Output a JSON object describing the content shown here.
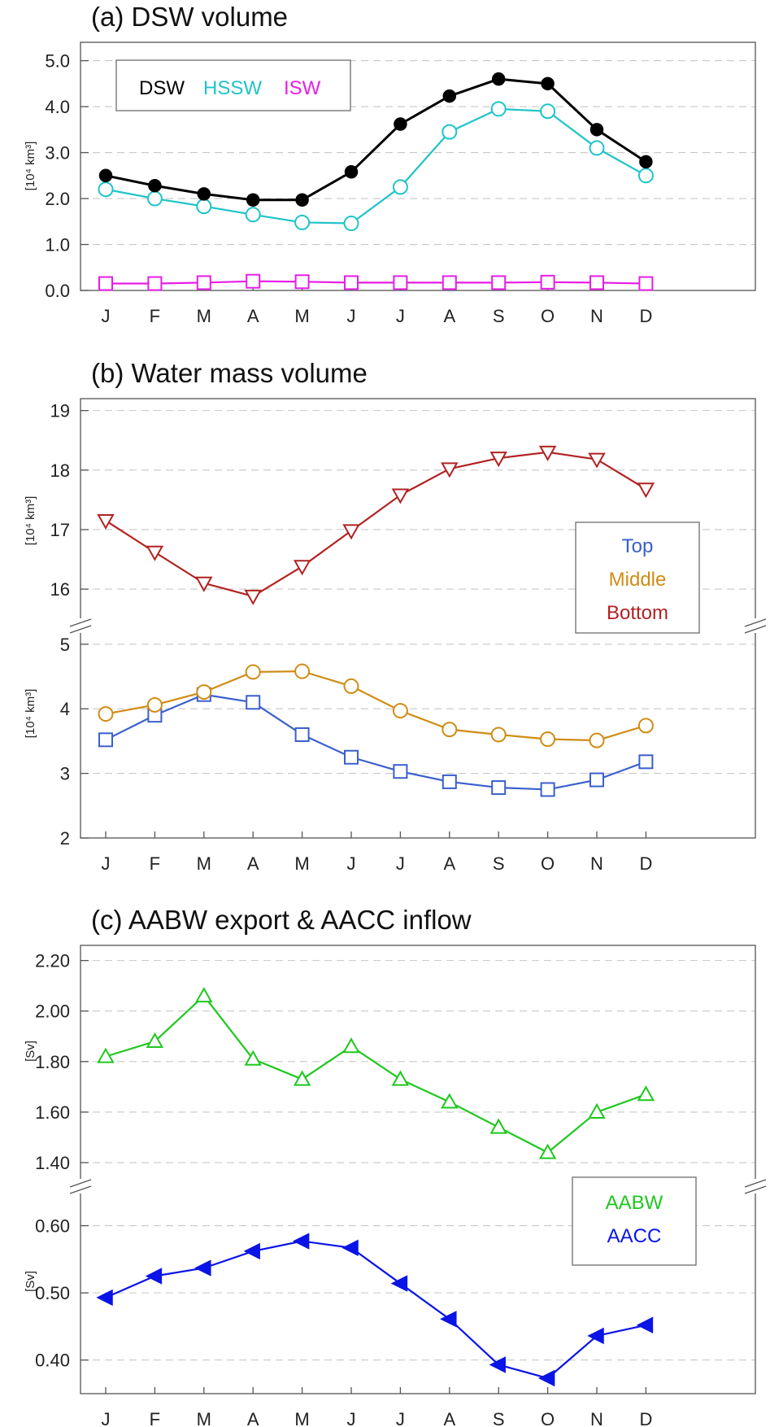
{
  "months": [
    "J",
    "F",
    "M",
    "A",
    "M",
    "J",
    "J",
    "A",
    "S",
    "O",
    "N",
    "D"
  ],
  "chart_data": [
    {
      "type": "line",
      "title": "(a) DSW volume",
      "xlabel": "",
      "ylabel": "[10⁴ km³]",
      "ylim": [
        0.0,
        5.4
      ],
      "yticks": [
        "0.0",
        "1.0",
        "2.0",
        "3.0",
        "4.0",
        "5.0"
      ],
      "legend": [
        "DSW",
        "HSSW",
        "ISW"
      ],
      "series": [
        {
          "name": "DSW",
          "color": "#000000",
          "marker": "filled-circle",
          "values": [
            2.5,
            2.28,
            2.1,
            1.97,
            1.97,
            2.58,
            3.62,
            4.23,
            4.6,
            4.5,
            3.5,
            2.8
          ]
        },
        {
          "name": "HSSW",
          "color": "#1ec4c8",
          "marker": "open-circle",
          "values": [
            2.2,
            2.0,
            1.83,
            1.65,
            1.48,
            1.46,
            2.25,
            3.45,
            3.95,
            3.9,
            3.1,
            2.5
          ]
        },
        {
          "name": "ISW",
          "color": "#e61ee6",
          "marker": "open-square",
          "values": [
            0.15,
            0.15,
            0.17,
            0.2,
            0.19,
            0.17,
            0.17,
            0.17,
            0.17,
            0.18,
            0.17,
            0.15
          ]
        }
      ]
    },
    {
      "type": "line",
      "title": "(b) Water mass volume",
      "xlabel": "",
      "ylabel_upper": "[10⁴ km³]",
      "ylabel_lower": "[10⁴ km³]",
      "ylim_upper": [
        15.4,
        19.2
      ],
      "ylim_lower": [
        2.0,
        5.3
      ],
      "yticks_upper": [
        "16",
        "17",
        "18",
        "19"
      ],
      "yticks_lower": [
        "2",
        "3",
        "4",
        "5"
      ],
      "legend": [
        "Top",
        "Middle",
        "Bottom"
      ],
      "series": [
        {
          "name": "Top",
          "color": "#3a5fcd",
          "marker": "open-square",
          "axis": "lower",
          "values": [
            3.52,
            3.9,
            4.22,
            4.1,
            3.6,
            3.25,
            3.03,
            2.87,
            2.78,
            2.75,
            2.9,
            3.18
          ]
        },
        {
          "name": "Middle",
          "color": "#d08c14",
          "marker": "open-circle",
          "axis": "lower",
          "values": [
            3.92,
            4.06,
            4.26,
            4.57,
            4.58,
            4.35,
            3.97,
            3.68,
            3.6,
            3.53,
            3.51,
            3.74
          ]
        },
        {
          "name": "Bottom",
          "color": "#b22222",
          "marker": "open-triangle-down",
          "axis": "upper",
          "values": [
            17.15,
            16.62,
            16.1,
            15.88,
            16.38,
            16.98,
            17.58,
            18.02,
            18.2,
            18.3,
            18.18,
            17.68
          ]
        }
      ]
    },
    {
      "type": "line",
      "title": "(c) AABW export & AACC inflow",
      "xlabel": "",
      "ylabel_upper": "[Sv]",
      "ylabel_lower": "[Sv]",
      "ylim_upper": [
        1.31,
        2.26
      ],
      "ylim_lower": [
        0.35,
        0.66
      ],
      "yticks_upper": [
        "1.40",
        "1.60",
        "1.80",
        "2.00",
        "2.20"
      ],
      "yticks_lower": [
        "0.40",
        "0.50",
        "0.60"
      ],
      "legend": [
        "AABW",
        "AACC"
      ],
      "series": [
        {
          "name": "AABW",
          "color": "#1ec81e",
          "marker": "open-triangle-up",
          "axis": "upper",
          "values": [
            1.82,
            1.88,
            2.06,
            1.81,
            1.73,
            1.86,
            1.73,
            1.64,
            1.54,
            1.44,
            1.6,
            1.67
          ]
        },
        {
          "name": "AACC",
          "color": "#0a14e6",
          "marker": "filled-triangle-left",
          "axis": "lower",
          "values": [
            0.493,
            0.525,
            0.537,
            0.562,
            0.577,
            0.567,
            0.514,
            0.461,
            0.393,
            0.373,
            0.436,
            0.452
          ]
        }
      ]
    }
  ]
}
